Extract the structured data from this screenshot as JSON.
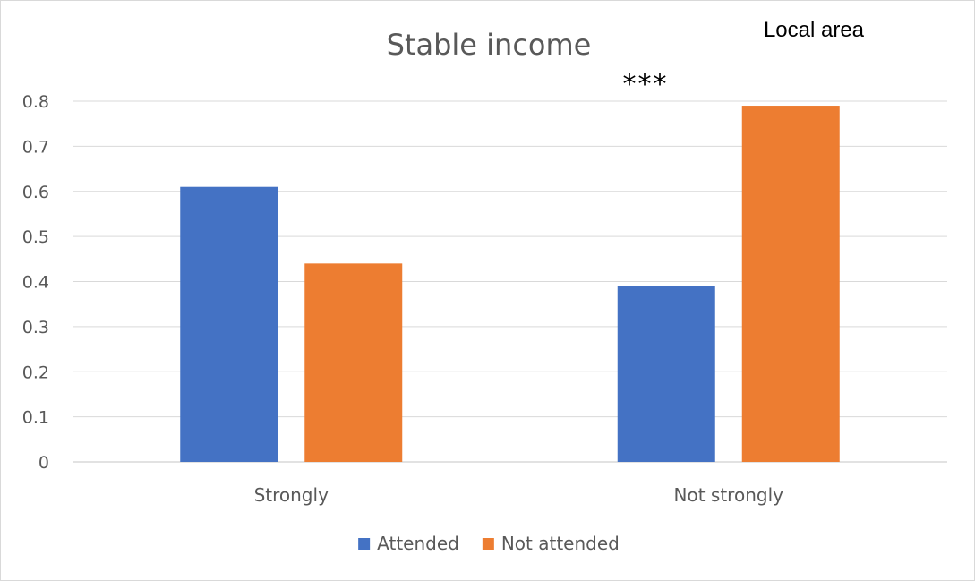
{
  "chart_data": {
    "type": "bar",
    "title": "Stable income",
    "annotation_top_right": "Local area",
    "significance_marker": "***",
    "categories": [
      "Strongly",
      "Not strongly"
    ],
    "series": [
      {
        "name": "Attended",
        "color": "#4472C4",
        "values": [
          0.61,
          0.39
        ]
      },
      {
        "name": "Not attended",
        "color": "#ED7D31",
        "values": [
          0.44,
          0.79
        ]
      }
    ],
    "y_ticks": [
      "0",
      "0.1",
      "0.2",
      "0.3",
      "0.4",
      "0.5",
      "0.6",
      "0.7",
      "0.8"
    ],
    "ylim": [
      0,
      0.8
    ],
    "grid": true,
    "legend_position": "bottom"
  }
}
